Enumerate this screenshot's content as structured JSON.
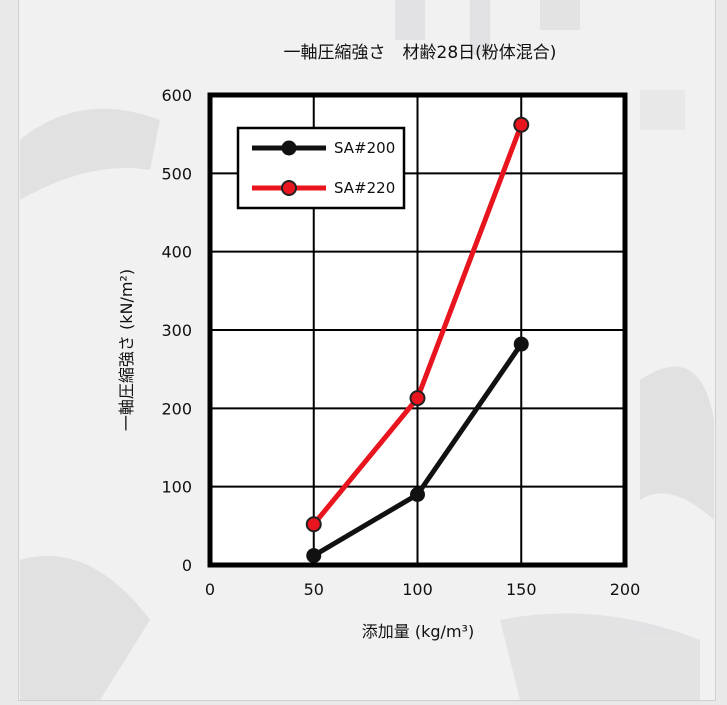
{
  "chart_data": {
    "type": "line",
    "title": "一軸圧縮強さ　材齢28日(粉体混合)",
    "xlabel": "添加量 (kg/m³)",
    "ylabel": "一軸圧縮強さ (kN/m²)",
    "xlim": [
      0,
      200
    ],
    "ylim": [
      0,
      600
    ],
    "xticks": [
      0,
      50,
      100,
      150,
      200
    ],
    "yticks": [
      0,
      100,
      200,
      300,
      400,
      500,
      600
    ],
    "grid": true,
    "legend_position": "top-left",
    "series": [
      {
        "name": "SA#200",
        "color": "#111111",
        "x": [
          50,
          100,
          150
        ],
        "y": [
          12,
          90,
          282
        ]
      },
      {
        "name": "SA#220",
        "color": "#e8141e",
        "x": [
          50,
          100,
          150
        ],
        "y": [
          52,
          213,
          562
        ]
      }
    ]
  }
}
